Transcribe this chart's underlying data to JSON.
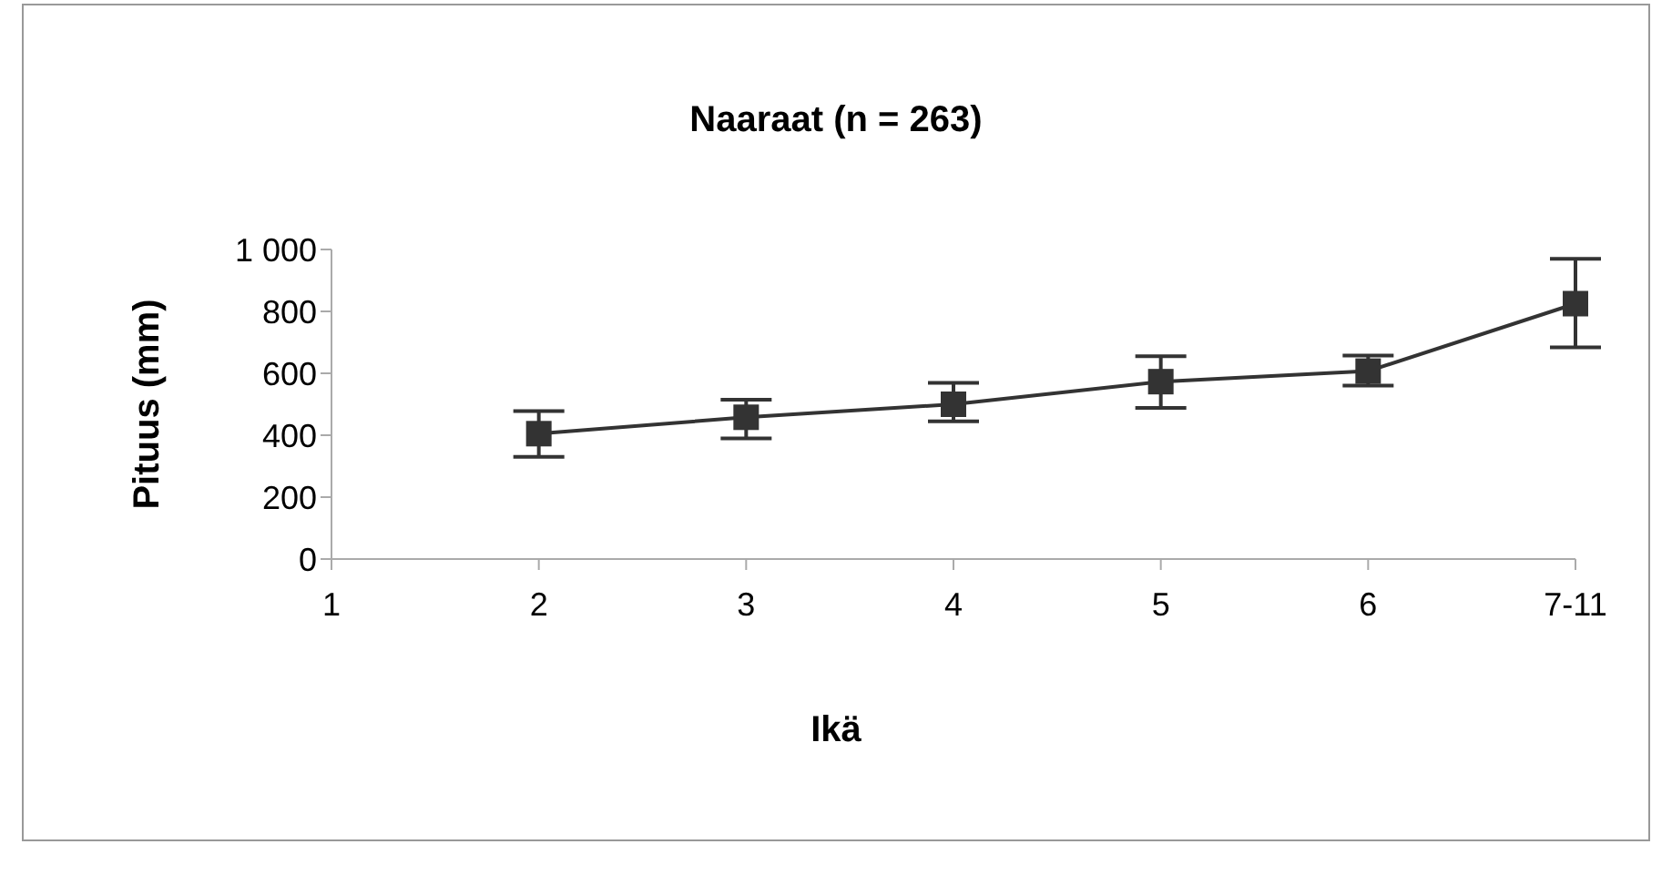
{
  "chart_data": {
    "type": "line",
    "title": "Naaraat (n = 263)",
    "xlabel": "Ikä",
    "ylabel": "Pituus (mm)",
    "categories": [
      "1",
      "2",
      "3",
      "4",
      "5",
      "6",
      "7-11"
    ],
    "series": [
      {
        "color": "#333333",
        "values": [
          null,
          405,
          458,
          500,
          573,
          607,
          825
        ],
        "errors": [
          null,
          [
            330,
            478
          ],
          [
            390,
            515
          ],
          [
            445,
            569
          ],
          [
            488,
            655
          ],
          [
            560,
            657
          ],
          [
            684,
            970
          ]
        ]
      }
    ],
    "ylim": [
      0,
      1000
    ],
    "yticks": [
      0,
      200,
      400,
      600,
      800,
      {
        "value": 1000,
        "label": "1 000"
      }
    ],
    "grid": false,
    "legend": false,
    "marker": "square",
    "line_style": "solid"
  }
}
